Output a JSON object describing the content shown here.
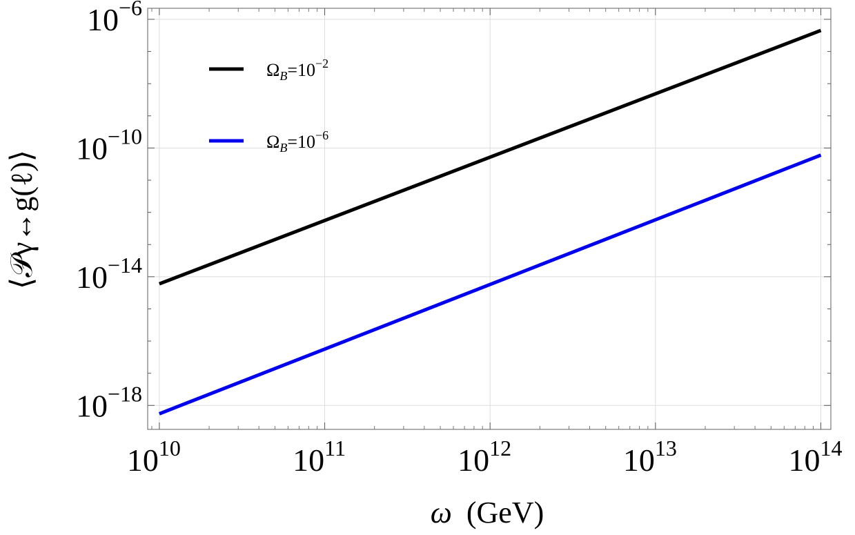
{
  "chart_data": {
    "type": "line",
    "xlabel_symbol": "ω",
    "xlabel_unit": "(GeV)",
    "ylabel": "⟨𝒫γ↔g(ℓ)⟩",
    "x_scale": "log",
    "y_scale": "log",
    "xlim": [
      8500000000.0,
      115000000000000.0
    ],
    "ylim": [
      1.8e-19,
      2.2e-06
    ],
    "grid": true,
    "legend_placement": "top-left",
    "x_ticks": [
      {
        "base": "10",
        "exp": "10",
        "value": 10000000000.0
      },
      {
        "base": "10",
        "exp": "11",
        "value": 100000000000.0
      },
      {
        "base": "10",
        "exp": "12",
        "value": 1000000000000.0
      },
      {
        "base": "10",
        "exp": "13",
        "value": 10000000000000.0
      },
      {
        "base": "10",
        "exp": "14",
        "value": 100000000000000.0
      }
    ],
    "y_ticks": [
      {
        "base": "10",
        "exp": "−18",
        "value": 1e-18
      },
      {
        "base": "10",
        "exp": "−14",
        "value": 1e-14
      },
      {
        "base": "10",
        "exp": "−10",
        "value": 1e-10
      },
      {
        "base": "10",
        "exp": "−6",
        "value": 1e-06
      }
    ],
    "series": [
      {
        "name_base": "Ω",
        "name_sub": "B",
        "name_eq": "=10",
        "name_exp": "−2",
        "color": "#000000",
        "x": [
          10000000000.0,
          100000000000000.0
        ],
        "y": [
          6e-15,
          4.5e-07
        ]
      },
      {
        "name_base": "Ω",
        "name_sub": "B",
        "name_eq": "=10",
        "name_exp": "−6",
        "color": "#0000ee",
        "x": [
          10000000000.0,
          100000000000000.0
        ],
        "y": [
          5.5e-19,
          6e-11
        ]
      }
    ]
  }
}
